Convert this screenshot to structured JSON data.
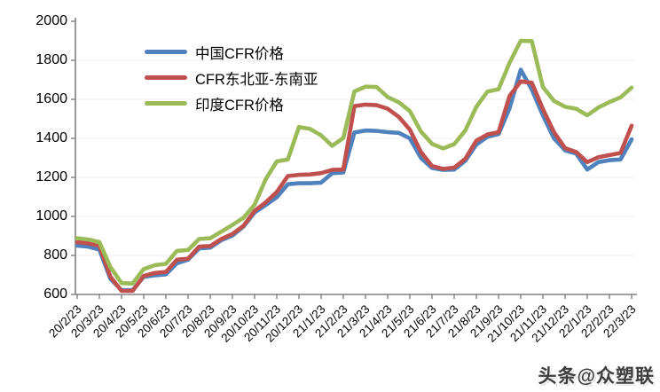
{
  "chart_data": {
    "type": "line",
    "title": "",
    "xlabel": "",
    "ylabel": "",
    "grid": "horizontal-faint",
    "legend_position": "top-left-inside",
    "y_axis": {
      "min": 600,
      "max": 2000,
      "step": 200,
      "ticks": [
        600,
        800,
        1000,
        1200,
        1400,
        1600,
        1800,
        2000
      ]
    },
    "x_labels": [
      "20/2/23",
      "20/3/23",
      "20/4/23",
      "20/5/23",
      "20/6/23",
      "20/7/23",
      "20/8/23",
      "20/9/23",
      "20/10/23",
      "20/11/23",
      "20/12/23",
      "21/1/23",
      "21/2/23",
      "21/3/23",
      "21/4/23",
      "21/5/23",
      "21/6/23",
      "21/7/23",
      "21/8/23",
      "21/9/23",
      "21/10/23",
      "21/11/23",
      "21/12/23",
      "22/1/23",
      "22/2/23",
      "22/3/23"
    ],
    "points_per_tick": 2,
    "series": [
      {
        "name": "中国CFR价格",
        "color": "#4F81BD",
        "values": [
          850,
          845,
          830,
          680,
          622,
          622,
          690,
          698,
          703,
          760,
          778,
          836,
          840,
          878,
          902,
          948,
          1020,
          1058,
          1098,
          1165,
          1170,
          1170,
          1173,
          1222,
          1225,
          1430,
          1440,
          1438,
          1432,
          1428,
          1400,
          1300,
          1248,
          1238,
          1240,
          1285,
          1368,
          1408,
          1422,
          1555,
          1752,
          1650,
          1518,
          1400,
          1338,
          1322,
          1240,
          1278,
          1288,
          1292,
          1395
        ]
      },
      {
        "name": "CFR东北亚-东南亚",
        "color": "#C0504D",
        "values": [
          868,
          862,
          850,
          690,
          618,
          618,
          695,
          710,
          715,
          778,
          783,
          845,
          848,
          884,
          910,
          952,
          1028,
          1072,
          1125,
          1207,
          1213,
          1215,
          1222,
          1238,
          1240,
          1565,
          1573,
          1570,
          1552,
          1510,
          1445,
          1330,
          1258,
          1243,
          1250,
          1295,
          1388,
          1420,
          1432,
          1618,
          1692,
          1685,
          1550,
          1432,
          1350,
          1330,
          1278,
          1303,
          1314,
          1325,
          1465
        ]
      },
      {
        "name": "印度CFR价格",
        "color": "#9BBB59",
        "values": [
          888,
          882,
          868,
          740,
          658,
          656,
          730,
          750,
          757,
          823,
          828,
          884,
          888,
          922,
          956,
          993,
          1060,
          1190,
          1282,
          1292,
          1458,
          1448,
          1415,
          1362,
          1402,
          1640,
          1665,
          1663,
          1612,
          1585,
          1540,
          1435,
          1372,
          1348,
          1370,
          1440,
          1562,
          1640,
          1652,
          1788,
          1900,
          1898,
          1663,
          1592,
          1562,
          1552,
          1518,
          1558,
          1586,
          1610,
          1660
        ]
      }
    ]
  },
  "watermark": {
    "text": "头条@众塑联"
  },
  "colors": {
    "axis": "#808080",
    "grid": "#F4F0F1",
    "text": "#000000",
    "background": "#FFFFFF"
  }
}
